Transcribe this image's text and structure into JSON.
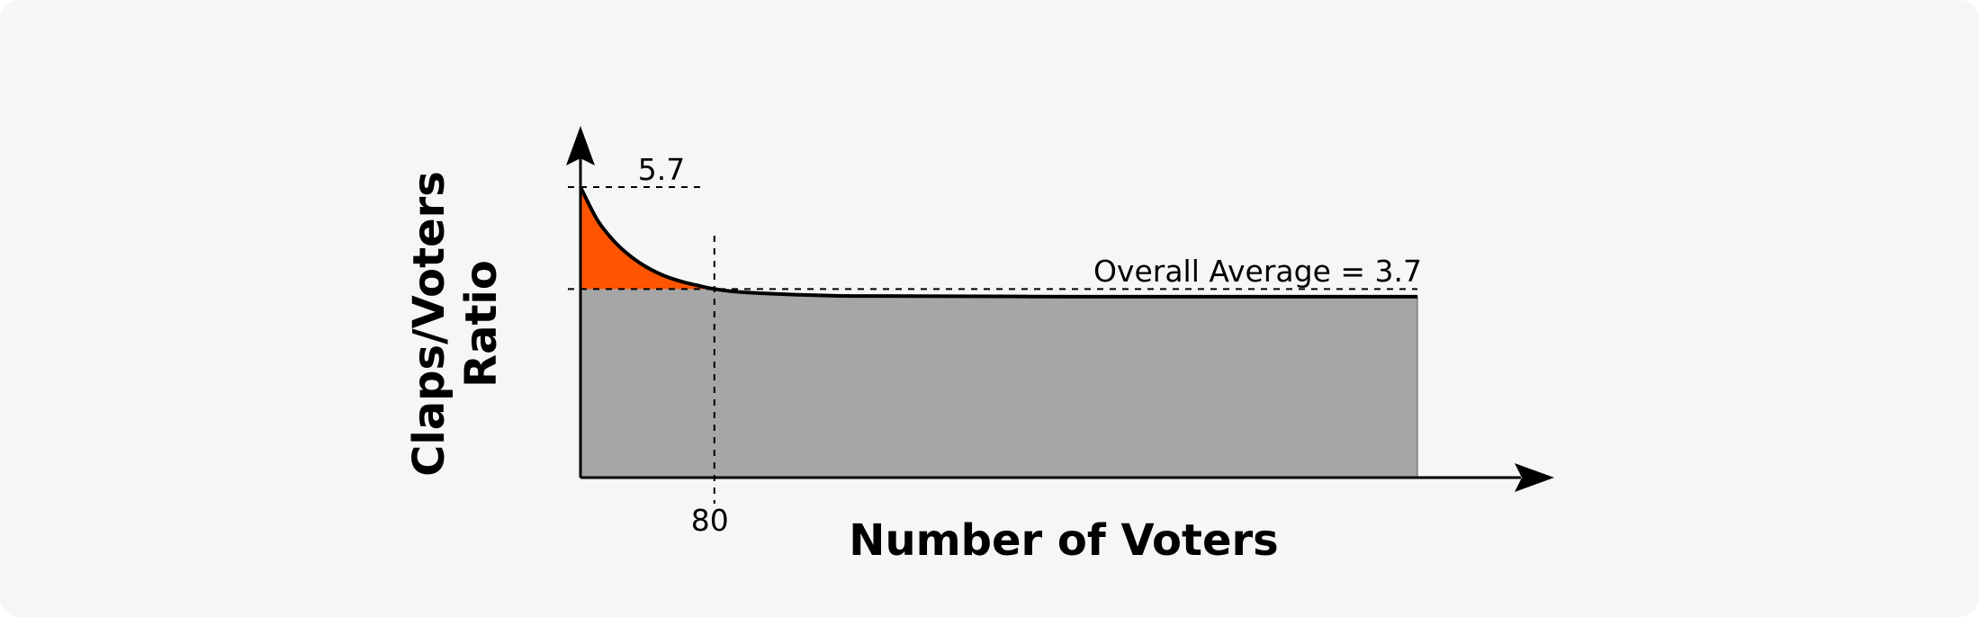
{
  "chart_data": {
    "type": "area",
    "xlabel": "Number of Voters",
    "ylabel_lines": [
      "Claps/Voters",
      "Ratio"
    ],
    "peak": {
      "label": "5.7",
      "value": 5.7
    },
    "average": {
      "label": "Overall Average = 3.7",
      "value": 3.7
    },
    "threshold": {
      "label": "80",
      "x": 80
    },
    "curve": {
      "x": [
        0,
        10,
        20,
        30,
        40,
        50,
        60,
        70,
        80,
        100,
        150,
        200,
        300,
        400,
        500
      ],
      "y": [
        5.7,
        5.06,
        4.64,
        4.34,
        4.12,
        3.96,
        3.85,
        3.77,
        3.7,
        3.63,
        3.57,
        3.56,
        3.55,
        3.55,
        3.55
      ]
    },
    "xlim": [
      0,
      500
    ],
    "ylim": [
      0,
      5.7
    ],
    "colors": {
      "above_average_fill": "#ff5500",
      "below_average_fill": "#a6a6a6",
      "background": "#f6f6f6",
      "line": "#000000"
    }
  }
}
